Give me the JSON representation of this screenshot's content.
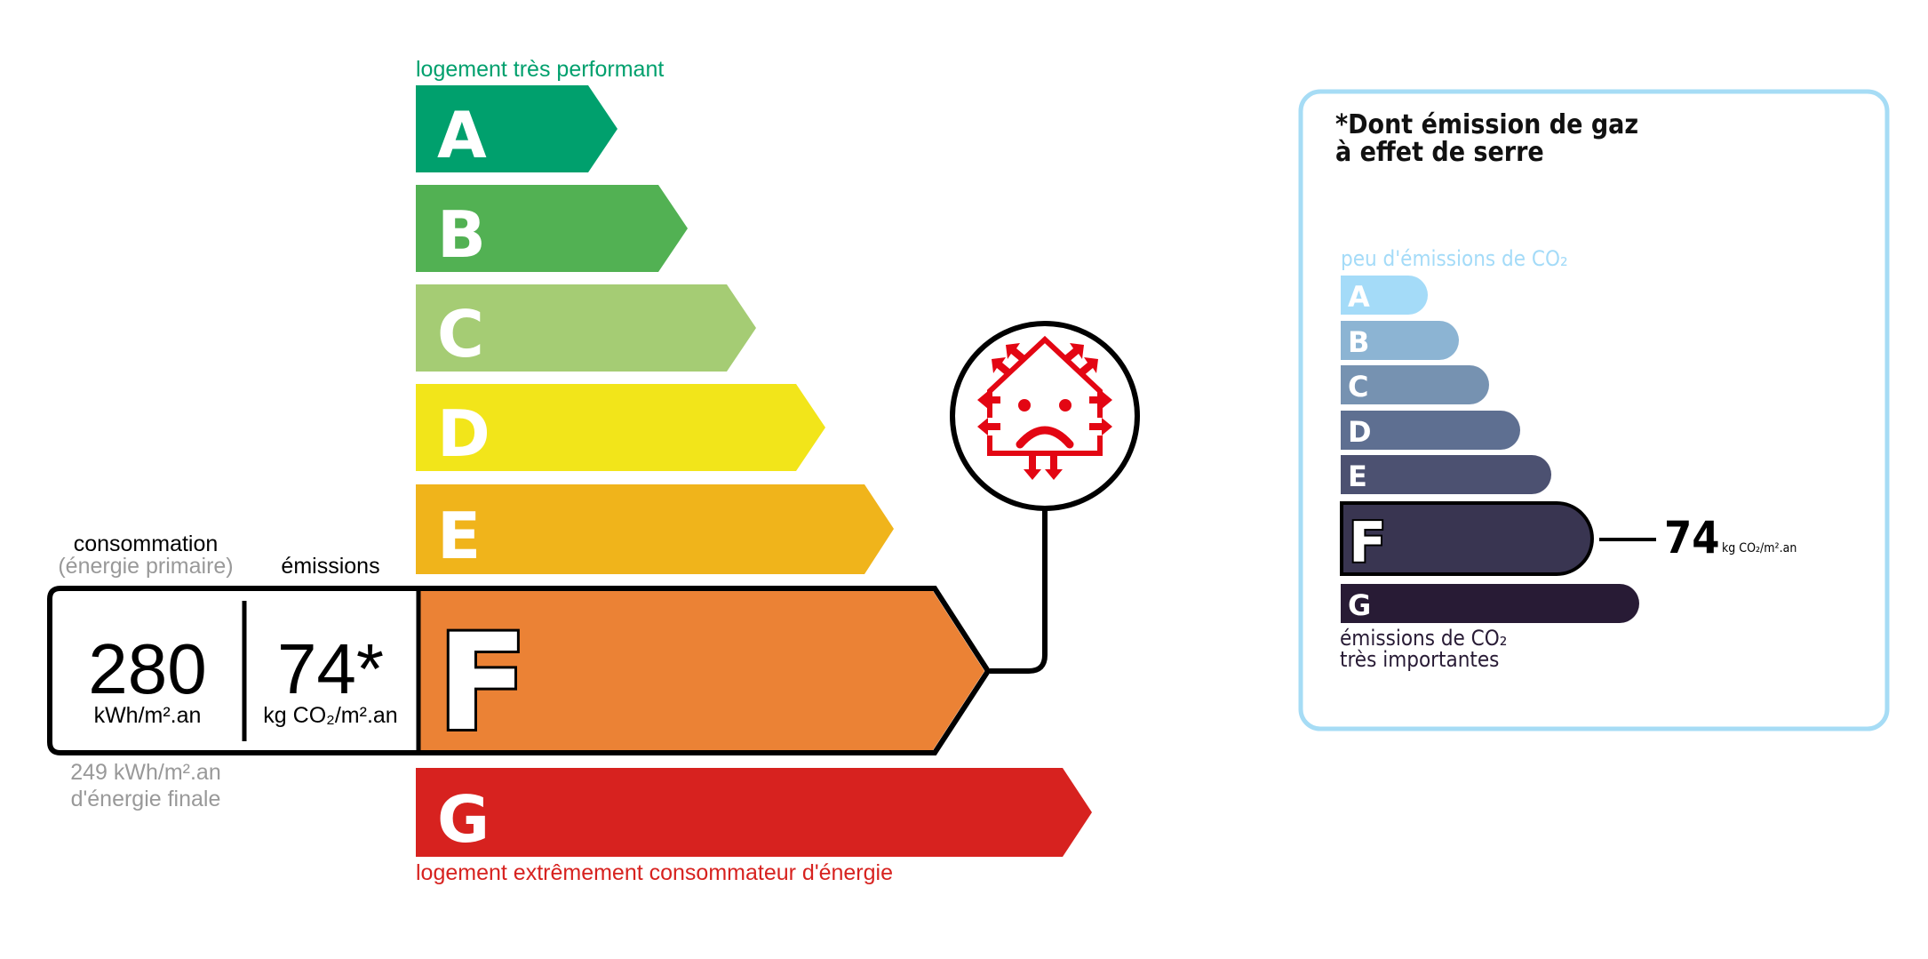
{
  "energy_label": {
    "top_caption": "logement très performant",
    "bottom_caption": "logement extrêmement consommateur d'énergie",
    "classes": [
      {
        "letter": "A",
        "color": "#00a06d"
      },
      {
        "letter": "B",
        "color": "#52b153"
      },
      {
        "letter": "C",
        "color": "#a5cc74"
      },
      {
        "letter": "D",
        "color": "#f2e51a"
      },
      {
        "letter": "E",
        "color": "#f0b41b"
      },
      {
        "letter": "F",
        "color": "#eb8235"
      },
      {
        "letter": "G",
        "color": "#d7221f"
      }
    ],
    "current_class": "F",
    "consumption_label": "consommation",
    "consumption_sublabel": "(énergie primaire)",
    "emissions_label": "émissions",
    "consumption_value": "280",
    "consumption_unit": "kWh/m².an",
    "emissions_value": "74*",
    "emissions_unit": "kg CO₂/m².an",
    "final_energy_value": "249 kWh/m².an",
    "final_energy_label": "d'énergie finale",
    "icon": "sad-house-heat-loss-icon",
    "icon_color": "#e30613"
  },
  "ges_panel": {
    "title_line1": "*Dont émission de gaz",
    "title_line2": "à effet de serre",
    "top_caption": "peu d'émissions de CO₂",
    "bottom_caption_line1": "émissions de CO₂",
    "bottom_caption_line2": "très importantes",
    "border_color": "#a6dcf5",
    "classes": [
      {
        "letter": "A",
        "color": "#a4dbf8"
      },
      {
        "letter": "B",
        "color": "#8cb4d3"
      },
      {
        "letter": "C",
        "color": "#7692b1"
      },
      {
        "letter": "D",
        "color": "#5e6f91"
      },
      {
        "letter": "E",
        "color": "#4c5171"
      },
      {
        "letter": "F",
        "color": "#393551"
      },
      {
        "letter": "G",
        "color": "#281b35"
      }
    ],
    "current_class": "F",
    "value": "74",
    "unit": "kg CO₂/m².an"
  }
}
